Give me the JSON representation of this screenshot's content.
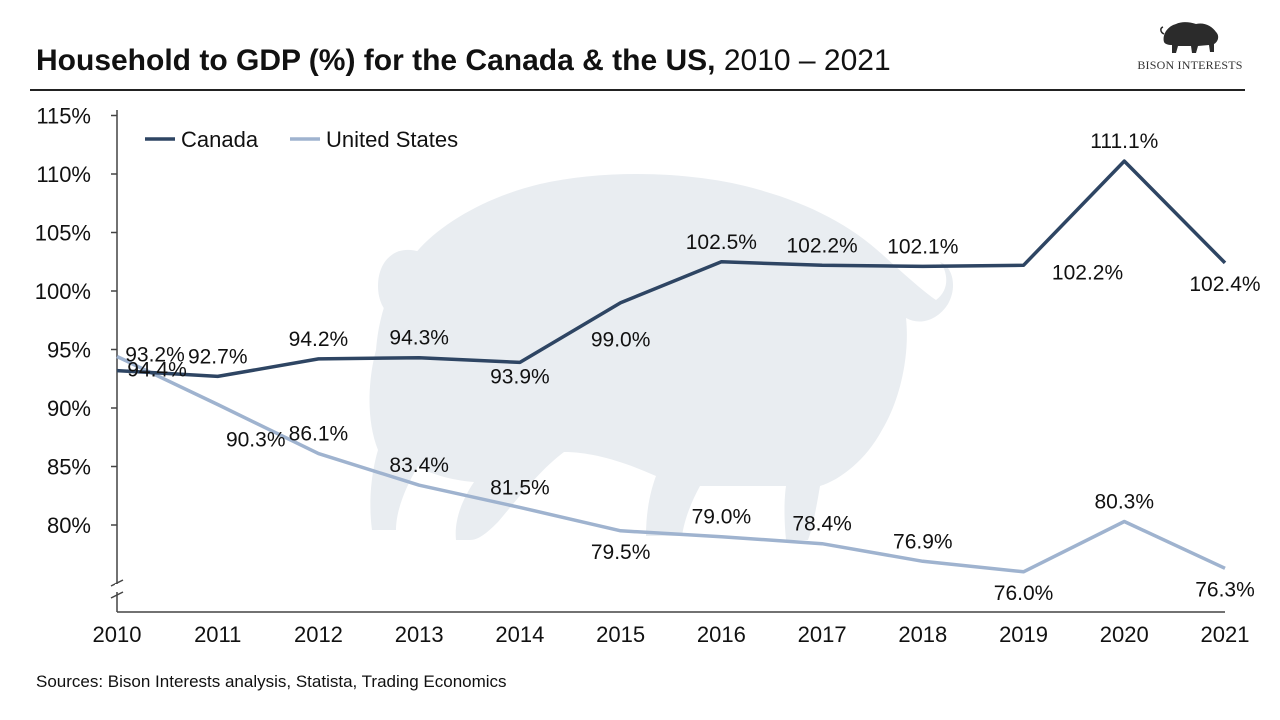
{
  "title": {
    "bold": "Household to GDP (%) for the Canada & the US,",
    "normal": "2010 – 2021"
  },
  "logo": {
    "text": "BISON INTERESTS",
    "icon": "bison-icon"
  },
  "source": "Sources: Bison Interests analysis, Statista, Trading Economics",
  "colors": {
    "canada": "#2e4563",
    "united_states": "#9fb3cf",
    "axis": "#444444",
    "watermark": "#e9edf1"
  },
  "chart_data": {
    "type": "line",
    "title": "Household to GDP (%) for the Canada & the US, 2010 – 2021",
    "xlabel": "",
    "ylabel": "",
    "categories": [
      "2010",
      "2011",
      "2012",
      "2013",
      "2014",
      "2015",
      "2016",
      "2017",
      "2018",
      "2019",
      "2020",
      "2021"
    ],
    "ylim": [
      75,
      115
    ],
    "y_ticks": [
      80,
      85,
      90,
      95,
      100,
      105,
      110,
      115
    ],
    "y_tick_labels": [
      "80%",
      "85%",
      "90%",
      "95%",
      "100%",
      "105%",
      "110%",
      "115%"
    ],
    "axis_break": true,
    "grid": false,
    "legend_position": "top-left",
    "series": [
      {
        "name": "Canada",
        "values": [
          93.2,
          92.7,
          94.2,
          94.3,
          93.9,
          99.0,
          102.5,
          102.2,
          102.1,
          102.2,
          111.1,
          102.4
        ],
        "labels": [
          "93.2%",
          "92.7%",
          "94.2%",
          "94.3%",
          "93.9%",
          "99.0%",
          "102.5%",
          "102.2%",
          "102.1%",
          "102.2%",
          "111.1%",
          "102.4%"
        ]
      },
      {
        "name": "United States",
        "values": [
          94.4,
          90.3,
          86.1,
          83.4,
          81.5,
          79.5,
          79.0,
          78.4,
          76.9,
          76.0,
          80.3,
          76.3
        ],
        "labels": [
          "94.4%",
          "90.3%",
          "86.1%",
          "83.4%",
          "81.5%",
          "79.5%",
          "79.0%",
          "78.4%",
          "76.9%",
          "76.0%",
          "80.3%",
          "76.3%"
        ]
      }
    ]
  }
}
